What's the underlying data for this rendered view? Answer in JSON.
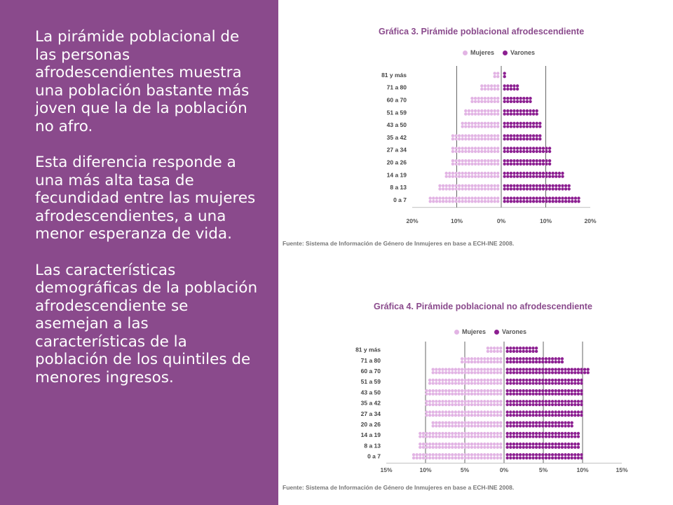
{
  "text": {
    "paragraphs": [
      "La pirámide poblacional de las personas afrodescendientes muestra una población bastante más joven que la de la población no afro.",
      "Esta diferencia responde a una más alta tasa de fecundidad entre las mujeres afrodescendientes, a una menor esperanza de vida.",
      "Las características demográficas de la población afrodescendiente se asemejan a las características de la población de los quintiles de menores ingresos."
    ]
  },
  "colors": {
    "sidebar": "#8a4a8c",
    "mujeres": "#e2b4e4",
    "varones": "#8c1f91"
  },
  "chart_data": [
    {
      "type": "bar",
      "title": "Gráfica 3. Pirámide poblacional afrodescendiente",
      "legend": [
        "Mujeres",
        "Varones"
      ],
      "legend_placement": "top",
      "categories": [
        "81 y más",
        "71 a 80",
        "60 a 70",
        "51 a 59",
        "43 a 50",
        "35 a 42",
        "27 a 34",
        "20 a 26",
        "14 a 19",
        "8 a 13",
        "0 a 7"
      ],
      "series": [
        {
          "name": "Mujeres",
          "values": [
            1.5,
            4,
            6.5,
            8,
            8.5,
            11,
            11,
            10.5,
            12.5,
            13.5,
            16
          ]
        },
        {
          "name": "Varones",
          "values": [
            0.5,
            3.5,
            6.5,
            8,
            8.5,
            9,
            10.5,
            10.5,
            13.5,
            15.5,
            17.5
          ]
        }
      ],
      "xlim": [
        -20,
        20
      ],
      "xticks": [
        "20%",
        "10%",
        "0%",
        "10%",
        "20%"
      ],
      "grid": true,
      "source": "Fuente: Sistema de Información de Género de Inmujeres en base a ECH-INE 2008."
    },
    {
      "type": "bar",
      "title": "Gráfica 4. Pirámide poblacional no afrodescendiente",
      "legend": [
        "Mujeres",
        "Varones"
      ],
      "legend_placement": "top",
      "categories": [
        "81 y más",
        "71 a 80",
        "60 a 70",
        "51 a 59",
        "43 a 50",
        "35 a 42",
        "27 a 34",
        "20 a 26",
        "14 a 19",
        "8 a 13",
        "0 a 7"
      ],
      "series": [
        {
          "name": "Mujeres",
          "values": [
            2,
            5.5,
            9,
            9.5,
            10,
            10,
            10,
            9,
            10.5,
            10.8,
            11.5
          ]
        },
        {
          "name": "Varones",
          "values": [
            4,
            7.5,
            10.5,
            10,
            10,
            10,
            9.8,
            8.7,
            9.5,
            9.5,
            10
          ]
        }
      ],
      "xlim": [
        -15,
        15
      ],
      "xticks": [
        "15%",
        "10%",
        "5%",
        "0%",
        "5%",
        "10%",
        "15%"
      ],
      "grid": true,
      "source": "Fuente: Sistema de Información de Género de Inmujeres en base a ECH-INE 2008."
    }
  ]
}
